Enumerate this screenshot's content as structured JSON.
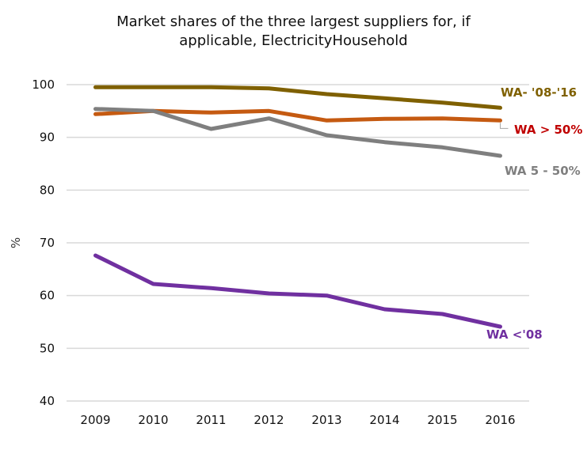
{
  "chart_data": {
    "type": "line",
    "title_lines": [
      "Market shares of the three largest suppliers for, if",
      "applicable, ElectricityHousehold"
    ],
    "xlabel": "",
    "ylabel": "%",
    "ylim": [
      40,
      100
    ],
    "yticks": [
      40,
      50,
      60,
      70,
      80,
      90,
      100
    ],
    "ytick_labels": [
      "40",
      "50",
      "60",
      "70",
      "80",
      "90",
      "100"
    ],
    "grid": true,
    "legend": "inline-labels-right",
    "categories": [
      "2009",
      "2010",
      "2011",
      "2012",
      "2013",
      "2014",
      "2015",
      "2016"
    ],
    "series": [
      {
        "name": "WA- '08-'16",
        "color": "#7F6000",
        "label_color": "#7F6000",
        "values": [
          99.5,
          99.5,
          99.5,
          99.3,
          98.2,
          97.4,
          96.6,
          95.6
        ]
      },
      {
        "name": "WA > 50%",
        "color": "#C55A11",
        "label_color": "#C00000",
        "values": [
          94.4,
          95.0,
          94.7,
          95.0,
          93.2,
          93.5,
          93.6,
          93.2
        ]
      },
      {
        "name": "WA 5 - 50%",
        "color": "#7F7F7F",
        "label_color": "#7F7F7F",
        "values": [
          95.4,
          95.0,
          91.6,
          93.6,
          90.4,
          89.1,
          88.1,
          86.5
        ]
      },
      {
        "name": "WA <'08",
        "color": "#7030A0",
        "label_color": "#7030A0",
        "values": [
          67.6,
          62.2,
          61.4,
          60.4,
          60.0,
          57.4,
          56.5,
          54.1
        ]
      }
    ]
  }
}
